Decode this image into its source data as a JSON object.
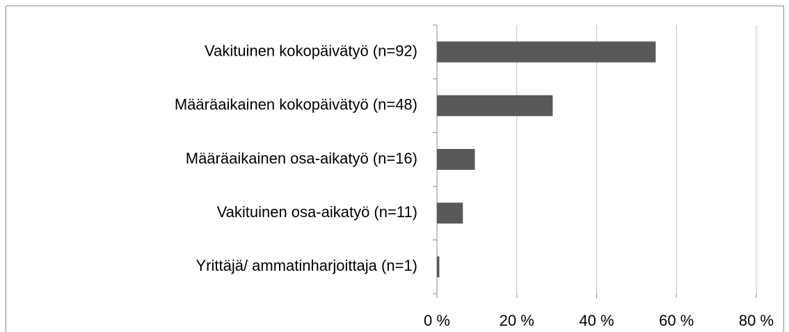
{
  "chart_data": {
    "type": "bar",
    "orientation": "horizontal",
    "categories": [
      "Vakituinen kokopäivätyö (n=92)",
      "Määräaikainen kokopäivätyö (n=48)",
      "Määräaikainen osa-aikatyö (n=16)",
      "Vakituinen osa-aikatyö (n=11)",
      "Yrittäjä/ ammatinharjoittaja (n=1)"
    ],
    "values": [
      54.8,
      29,
      9.5,
      6.5,
      0.6
    ],
    "color": "#595959",
    "xlim": [
      0,
      80
    ],
    "xticks": [
      {
        "value": 0,
        "label": "0 %"
      },
      {
        "value": 20,
        "label": "20 %"
      },
      {
        "value": 40,
        "label": "40 %"
      },
      {
        "value": 60,
        "label": "60 %"
      },
      {
        "value": 80,
        "label": "80 %"
      }
    ],
    "grid": true
  }
}
